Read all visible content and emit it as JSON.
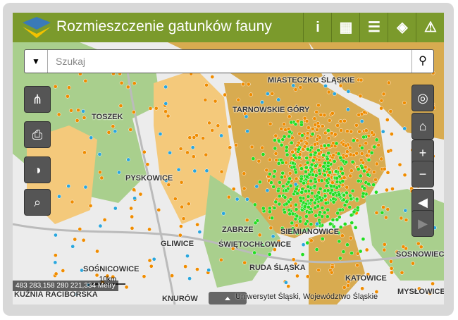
{
  "header": {
    "title": "Rozmieszczenie gatunków fauny"
  },
  "search": {
    "placeholder": "Szukaj"
  },
  "map": {
    "labels": [
      "MIASTECZKO ŚLĄSKIE",
      "TOSZEK",
      "TARNOWSKIE GÓRY",
      "PYSKOWICE",
      "ZABRZE",
      "ŚWIĘTOCHŁOWICE",
      "SIEMIANOWICE",
      "GLIWICE",
      "SOŚNICOWICE",
      "RUDA ŚLĄSKA",
      "KNURÓW",
      "KUŹNIA RACIBORSKA",
      "KATOWICE",
      "MYSŁOWICE",
      "SOSNOWIEC"
    ],
    "scale": "483 283,158 280 221,334 Metry",
    "scale_bar": "10km",
    "attribution": "Uniwersytet Śląski, Województwo Śląskie"
  }
}
